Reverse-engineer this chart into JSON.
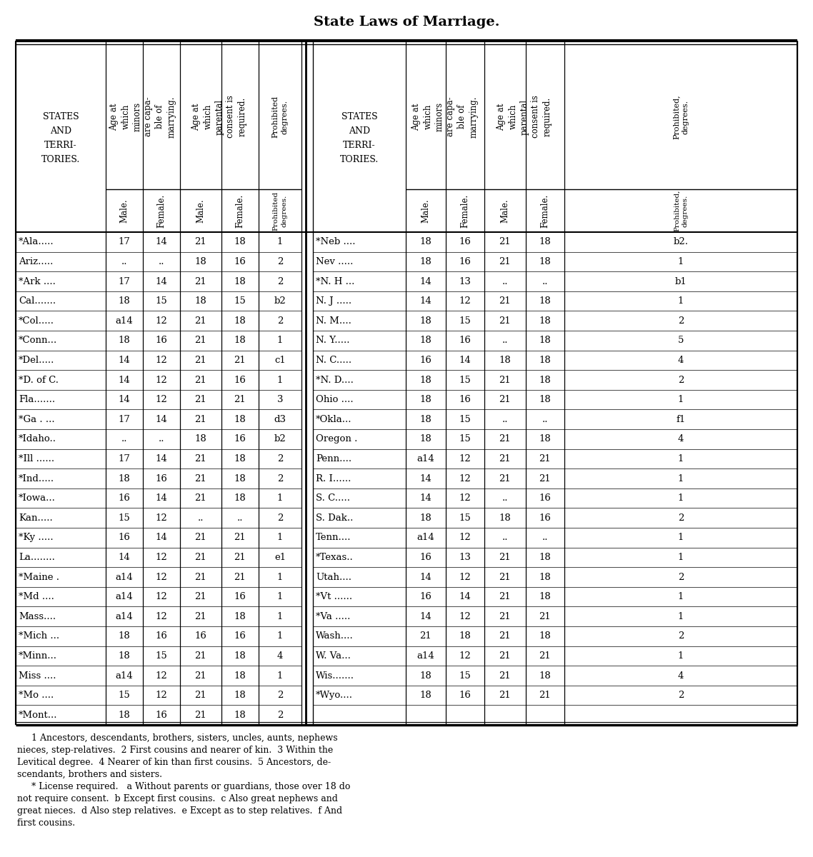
{
  "title": "State Laws of Marriage.",
  "left_states_label": [
    "STATES",
    "AND",
    "TERRI-",
    "TORIES."
  ],
  "right_states_label": [
    "STATES",
    "AND",
    "TERRI-",
    "TORIES."
  ],
  "header_text1": "Age at\nwhich\nminors\nare capa-\nble of\nmarrying.",
  "header_text2": "Age at\nwhich\nparental\nconsent is\nrequired.",
  "header_text3_left": "Prohibited\ndegrees.",
  "header_text3_right": "Prohibited,\ndegrees.",
  "left_data": [
    [
      "*Ala.....",
      "17",
      "14",
      "21",
      "18",
      "1"
    ],
    [
      "Ariz.....",
      "..",
      "..",
      "18",
      "16",
      "2"
    ],
    [
      "*Ark ....",
      "17",
      "14",
      "21",
      "18",
      "2"
    ],
    [
      "Cal.......",
      "18",
      "15",
      "18",
      "15",
      "b2"
    ],
    [
      "*Col.....",
      "a14",
      "12",
      "21",
      "18",
      "2"
    ],
    [
      "*Conn...",
      "18",
      "16",
      "21",
      "18",
      "1"
    ],
    [
      "*Del.....",
      "14",
      "12",
      "21",
      "21",
      "c1"
    ],
    [
      "*D. of C.",
      "14",
      "12",
      "21",
      "16",
      "1"
    ],
    [
      "Fla.......",
      "14",
      "12",
      "21",
      "21",
      "3"
    ],
    [
      "*Ga . ...",
      "17",
      "14",
      "21",
      "18",
      "d3"
    ],
    [
      "*Idaho..",
      "..",
      "..",
      "18",
      "16",
      "b2"
    ],
    [
      "*Ill ......",
      "17",
      "14",
      "21",
      "18",
      "2"
    ],
    [
      "*Ind.....",
      "18",
      "16",
      "21",
      "18",
      "2"
    ],
    [
      "*Iowa...",
      "16",
      "14",
      "21",
      "18",
      "1"
    ],
    [
      "Kan.....",
      "15",
      "12",
      "..",
      "..",
      "2"
    ],
    [
      "*Ky .....",
      "16",
      "14",
      "21",
      "21",
      "1"
    ],
    [
      "La........",
      "14",
      "12",
      "21",
      "21",
      "e1"
    ],
    [
      "*Maine .",
      "a14",
      "12",
      "21",
      "21",
      "1"
    ],
    [
      "*Md ....",
      "a14",
      "12",
      "21",
      "16",
      "1"
    ],
    [
      "Mass....",
      "a14",
      "12",
      "21",
      "18",
      "1"
    ],
    [
      "*Mich ...",
      "18",
      "16",
      "16",
      "16",
      "1"
    ],
    [
      "*Minn...",
      "18",
      "15",
      "21",
      "18",
      "4"
    ],
    [
      "Miss ....",
      "a14",
      "12",
      "21",
      "18",
      "1"
    ],
    [
      "*Mo ....",
      "15",
      "12",
      "21",
      "18",
      "2"
    ],
    [
      "*Mont...",
      "18",
      "16",
      "21",
      "18",
      "2"
    ]
  ],
  "right_data": [
    [
      "*Neb ....",
      "18",
      "16",
      "21",
      "18",
      "b2."
    ],
    [
      "Nev .....",
      "18",
      "16",
      "21",
      "18",
      "1"
    ],
    [
      "*N. H ...",
      "14",
      "13",
      "..",
      "..",
      "b1"
    ],
    [
      "N. J .....",
      "14",
      "12",
      "21",
      "18",
      "1"
    ],
    [
      "N. M....",
      "18",
      "15",
      "21",
      "18",
      "2"
    ],
    [
      "N. Y.....",
      "18",
      "16",
      "..",
      "18",
      "5"
    ],
    [
      "N. C.....",
      "16",
      "14",
      "18",
      "18",
      "4"
    ],
    [
      "*N. D....",
      "18",
      "15",
      "21",
      "18",
      "2"
    ],
    [
      "Ohio ....",
      "18",
      "16",
      "21",
      "18",
      "1"
    ],
    [
      "*Okla...",
      "18",
      "15",
      "..",
      "..",
      "f1"
    ],
    [
      "Oregon .",
      "18",
      "15",
      "21",
      "18",
      "4"
    ],
    [
      "Penn....",
      "a14",
      "12",
      "21",
      "21",
      "1"
    ],
    [
      "R. I......",
      "14",
      "12",
      "21",
      "21",
      "1"
    ],
    [
      "S. C.....",
      "14",
      "12",
      "..",
      "16",
      "1"
    ],
    [
      "S. Dak..",
      "18",
      "15",
      "18",
      "16",
      "2"
    ],
    [
      "Tenn....",
      "a14",
      "12",
      "..",
      "..",
      "1"
    ],
    [
      "*Texas..",
      "16",
      "13",
      "21",
      "18",
      "1"
    ],
    [
      "Utah....",
      "14",
      "12",
      "21",
      "18",
      "2"
    ],
    [
      "*Vt ......",
      "16",
      "14",
      "21",
      "18",
      "1"
    ],
    [
      "*Va .....",
      "14",
      "12",
      "21",
      "21",
      "1"
    ],
    [
      "Wash....",
      "21",
      "18",
      "21",
      "18",
      "2"
    ],
    [
      "W. Va...",
      "a14",
      "12",
      "21",
      "21",
      "1"
    ],
    [
      "Wis.......",
      "18",
      "15",
      "21",
      "18",
      "4"
    ],
    [
      "*Wyo....",
      "18",
      "16",
      "21",
      "21",
      "2"
    ],
    [
      "",
      "",
      "",
      "",
      "",
      ""
    ]
  ],
  "footnote1": "     1 Ancestors, descendants, brothers, sisters, uncles, aunts, nephews nieces, step-relatives.  2 First cousins and nearer of kin.  3 Within the Levitical degree.  4 Nearer of kin than first cousins.  5 Ancestors, de-scendants, brothers and sisters.",
  "footnote2": "     * License required.   a Without parents or guardians, those over 18 do not require consent.  b Except first cousins.  c Also great nephews and great nieces.  d Also step relatives.  e Except as to step relatives.  f And first cousins.",
  "footnote_lines": [
    "     1 Ancestors, descendants, brothers, sisters, uncles, aunts, nephews",
    "nieces, step-relatives.  2 First cousins and nearer of kin.  3 Within the",
    "Levitical degree.  4 Nearer of kin than first cousins.  5 Ancestors, de-",
    "scendants, brothers and sisters.",
    "     * License required.   a Without parents or guardians, those over 18 do",
    "not require consent.  b Except first cousins.  c Also great nephews and",
    "great nieces.  d Also step relatives.  e Except as to step relatives.  f And",
    "first cousins."
  ]
}
